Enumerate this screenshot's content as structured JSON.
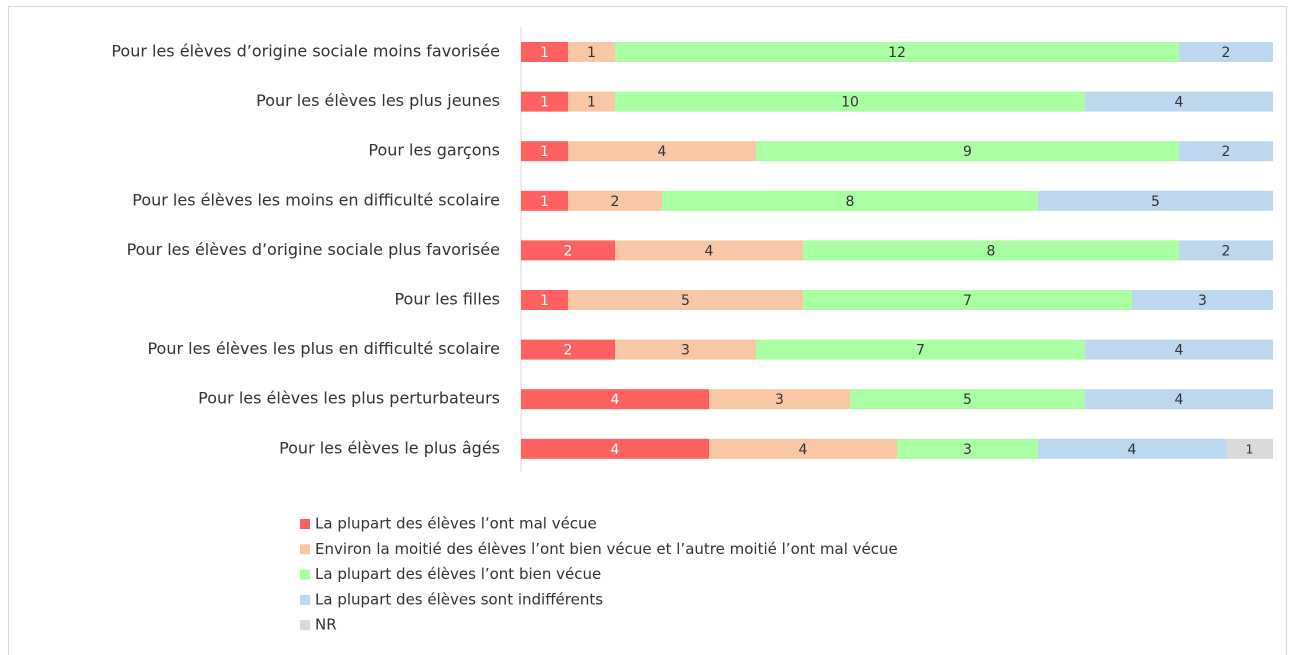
{
  "chart_data": {
    "type": "stacked_bar_horizontal",
    "categories": [
      "Pour les élèves d’origine sociale moins favorisée",
      "Pour les élèves les plus jeunes",
      "Pour les garçons",
      "Pour les élèves les moins en difficulté scolaire",
      "Pour les élèves d’origine sociale plus favorisée",
      "Pour les filles",
      "Pour les élèves les plus en difficulté scolaire",
      "Pour les élèves les plus perturbateurs",
      "Pour les élèves le plus âgés"
    ],
    "series": [
      {
        "name": "La plupart des élèves l’ont mal vécue",
        "color": "#ff6161",
        "values": [
          1,
          1,
          1,
          1,
          2,
          1,
          2,
          4,
          4
        ]
      },
      {
        "name": "Environ la moitié des élèves l’ont bien vécue et l’autre moitié l’ont mal vécue",
        "color": "#f8c7a6",
        "values": [
          1,
          1,
          4,
          2,
          4,
          5,
          3,
          3,
          4
        ]
      },
      {
        "name": "La plupart des élèves l’ont bien vécue",
        "color": "#aaffa3",
        "values": [
          12,
          10,
          9,
          8,
          8,
          7,
          7,
          5,
          3
        ]
      },
      {
        "name": "La plupart des élèves sont indifférents",
        "color": "#bdd7ee",
        "values": [
          2,
          4,
          2,
          5,
          2,
          3,
          4,
          4,
          4
        ]
      },
      {
        "name": "NR",
        "color": "#d9d9d9",
        "values": [
          0,
          0,
          0,
          0,
          0,
          0,
          0,
          0,
          1
        ]
      }
    ],
    "xlim": [
      0,
      16
    ]
  }
}
